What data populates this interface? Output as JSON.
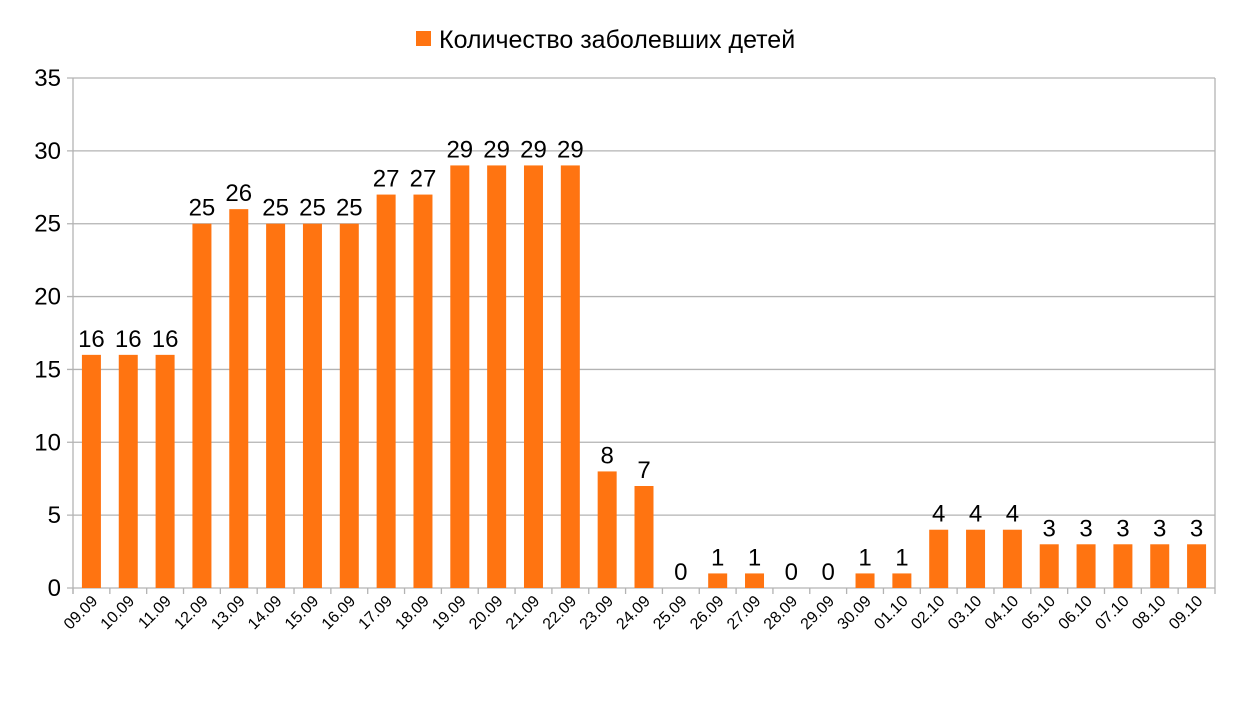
{
  "chart_data": {
    "type": "bar",
    "title": "",
    "xlabel": "",
    "ylabel": "",
    "ylim": [
      0,
      35
    ],
    "yticks": [
      0,
      5,
      10,
      15,
      20,
      25,
      30,
      35
    ],
    "grid": true,
    "legend_position": "top-center",
    "categories": [
      "09.09",
      "10.09",
      "11.09",
      "12.09",
      "13.09",
      "14.09",
      "15.09",
      "16.09",
      "17.09",
      "18.09",
      "19.09",
      "20.09",
      "21.09",
      "22.09",
      "23.09",
      "24.09",
      "25.09",
      "26.09",
      "27.09",
      "28.09",
      "29.09",
      "30.09",
      "01.10",
      "02.10",
      "03.10",
      "04.10",
      "05.10",
      "06.10",
      "07.10",
      "08.10",
      "09.10"
    ],
    "series": [
      {
        "name": "Количество заболевших детей",
        "color": "#ff7411",
        "values": [
          16,
          16,
          16,
          25,
          26,
          25,
          25,
          25,
          27,
          27,
          29,
          29,
          29,
          29,
          8,
          7,
          0,
          1,
          1,
          0,
          0,
          1,
          1,
          4,
          4,
          4,
          3,
          3,
          3,
          3,
          3
        ]
      }
    ]
  },
  "colors": {
    "bar": "#ff7411",
    "grid": "#b3b3b3",
    "axis": "#b3b3b3"
  }
}
